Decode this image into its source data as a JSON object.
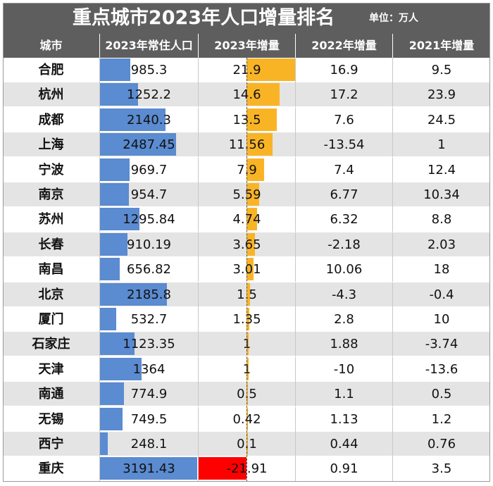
{
  "title": "重点城市2023年人口增量排名",
  "unit": "单位：万人",
  "headers": [
    "城市",
    "2023年常住人口",
    "2023年增量",
    "2022年增量",
    "2021年增量"
  ],
  "colors": {
    "header_bg": "#5e5e5e",
    "pop_bar": "#5b8bd0",
    "positive_bar": "#f9b426",
    "negative_bar": "#ff0000"
  },
  "chart_data": {
    "type": "table",
    "title": "重点城市2023年人口增量排名",
    "unit": "单位：万人",
    "columns": [
      "城市",
      "2023年常住人口",
      "2023年增量",
      "2022年增量",
      "2021年增量"
    ],
    "rows": [
      {
        "city": "合肥",
        "pop2023": "985.3",
        "inc2023": "21.9",
        "inc2022": "16.9",
        "inc2021": "9.5"
      },
      {
        "city": "杭州",
        "pop2023": "1252.2",
        "inc2023": "14.6",
        "inc2022": "17.2",
        "inc2021": "23.9"
      },
      {
        "city": "成都",
        "pop2023": "2140.3",
        "inc2023": "13.5",
        "inc2022": "7.6",
        "inc2021": "24.5"
      },
      {
        "city": "上海",
        "pop2023": "2487.45",
        "inc2023": "11.56",
        "inc2022": "-13.54",
        "inc2021": "1"
      },
      {
        "city": "宁波",
        "pop2023": "969.7",
        "inc2023": "7.9",
        "inc2022": "7.4",
        "inc2021": "12.4"
      },
      {
        "city": "南京",
        "pop2023": "954.7",
        "inc2023": "5.59",
        "inc2022": "6.77",
        "inc2021": "10.34"
      },
      {
        "city": "苏州",
        "pop2023": "1295.84",
        "inc2023": "4.74",
        "inc2022": "6.32",
        "inc2021": "8.8"
      },
      {
        "city": "长春",
        "pop2023": "910.19",
        "inc2023": "3.65",
        "inc2022": "-2.18",
        "inc2021": "2.03"
      },
      {
        "city": "南昌",
        "pop2023": "656.82",
        "inc2023": "3.01",
        "inc2022": "10.06",
        "inc2021": "18"
      },
      {
        "city": "北京",
        "pop2023": "2185.8",
        "inc2023": "1.5",
        "inc2022": "-4.3",
        "inc2021": "-0.4"
      },
      {
        "city": "厦门",
        "pop2023": "532.7",
        "inc2023": "1.35",
        "inc2022": "2.8",
        "inc2021": "10"
      },
      {
        "city": "石家庄",
        "pop2023": "1123.35",
        "inc2023": "1",
        "inc2022": "1.88",
        "inc2021": "-3.74"
      },
      {
        "city": "天津",
        "pop2023": "1364",
        "inc2023": "1",
        "inc2022": "-10",
        "inc2021": "-13.6"
      },
      {
        "city": "南通",
        "pop2023": "774.9",
        "inc2023": "0.5",
        "inc2022": "1.1",
        "inc2021": "0.5"
      },
      {
        "city": "无锡",
        "pop2023": "749.5",
        "inc2023": "0.42",
        "inc2022": "1.13",
        "inc2021": "1.2"
      },
      {
        "city": "西宁",
        "pop2023": "248.1",
        "inc2023": "0.1",
        "inc2022": "0.44",
        "inc2021": "0.76"
      },
      {
        "city": "重庆",
        "pop2023": "3191.43",
        "inc2023": "-21.91",
        "inc2022": "0.91",
        "inc2021": "3.5"
      }
    ]
  }
}
